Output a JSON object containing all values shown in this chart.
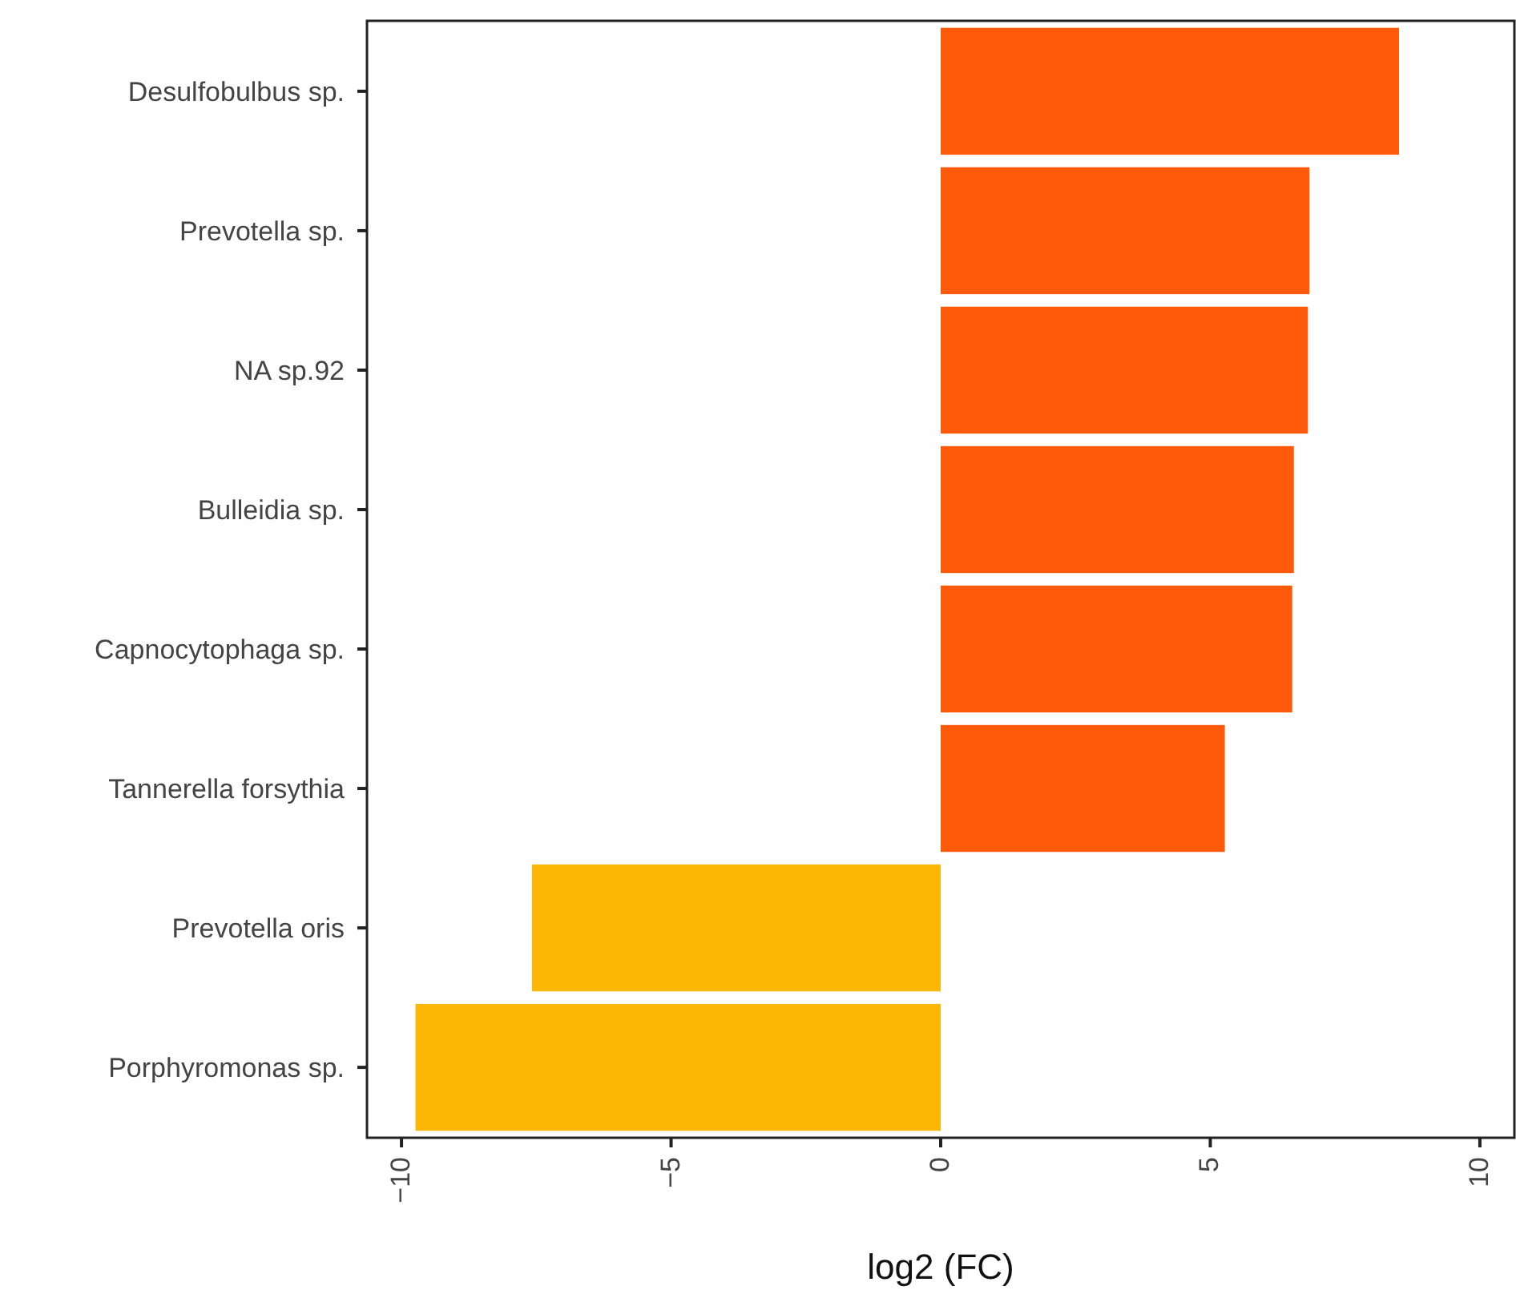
{
  "chart_data": {
    "type": "bar",
    "orientation": "horizontal",
    "xlabel": "log2 (FC)",
    "categories": [
      "Desulfobulbus sp.",
      "Prevotella sp.",
      "NA sp.92",
      "Bulleidia sp.",
      "Capnocytophaga sp.",
      "Tannerella forsythia",
      "Prevotella oris",
      "Porphyromonas sp."
    ],
    "values": [
      8.5,
      6.84,
      6.81,
      6.55,
      6.52,
      5.27,
      -7.58,
      -9.74
    ],
    "colors": [
      "#ff5a0a",
      "#ff5a0a",
      "#ff5a0a",
      "#ff5a0a",
      "#ff5a0a",
      "#ff5a0a",
      "#fdb705",
      "#fdb705"
    ],
    "xlim": [
      -10.64,
      10.64
    ],
    "xticks": [
      {
        "value": -10,
        "label": "−10"
      },
      {
        "value": -5,
        "label": "−5"
      },
      0,
      5,
      10
    ],
    "grid": false
  }
}
